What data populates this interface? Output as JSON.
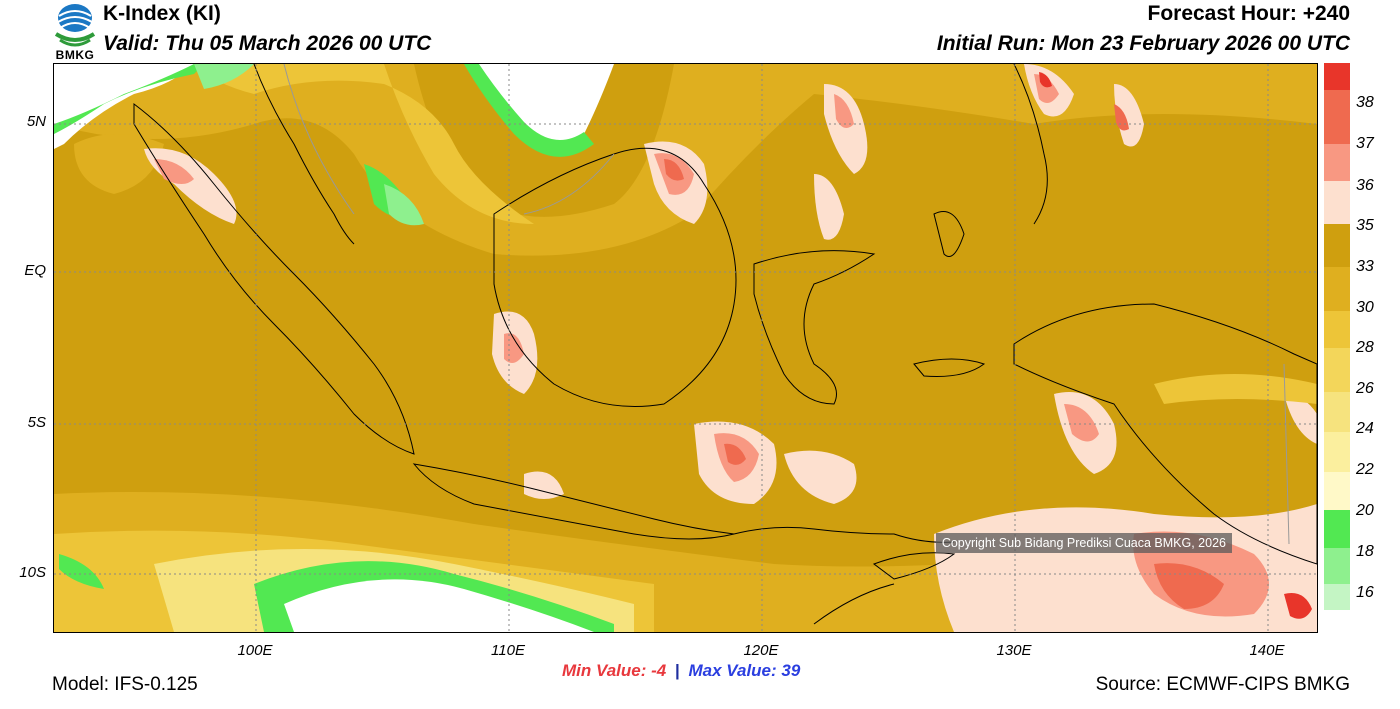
{
  "header": {
    "title": "K-Index (KI)",
    "valid": "Valid: Thu 05 March 2026 00 UTC",
    "forecast_hour": "Forecast Hour: +240",
    "initial_run": "Initial Run: Mon 23 February 2026 00 UTC",
    "logo_text": "BMKG"
  },
  "map": {
    "lat_labels": [
      "5N",
      "EQ",
      "5S",
      "10S"
    ],
    "lon_labels": [
      "100E",
      "110E",
      "120E",
      "130E",
      "140E"
    ],
    "copyright": "Copyright Sub Bidang Prediksi Cuaca BMKG, 2026"
  },
  "legend": {
    "labels": [
      "38",
      "37",
      "36",
      "35",
      "33",
      "30",
      "28",
      "26",
      "24",
      "22",
      "20",
      "18",
      "16"
    ],
    "colors": [
      "#e8352a",
      "#ef6a4f",
      "#f89882",
      "#fde0cf",
      "#cf9f0f",
      "#dfaf1f",
      "#edc538",
      "#f3d65a",
      "#f6e37e",
      "#fbef9e",
      "#fff9c8",
      "#52e852",
      "#8ef08e",
      "#c4f5c4",
      "#ffffff"
    ]
  },
  "footer": {
    "min_label": "Min Value:",
    "min_value": "-4",
    "separator": "|",
    "max_label": "Max Value:",
    "max_value": "39",
    "model": "Model: IFS-0.125",
    "source": "Source: ECMWF-CIPS BMKG"
  }
}
